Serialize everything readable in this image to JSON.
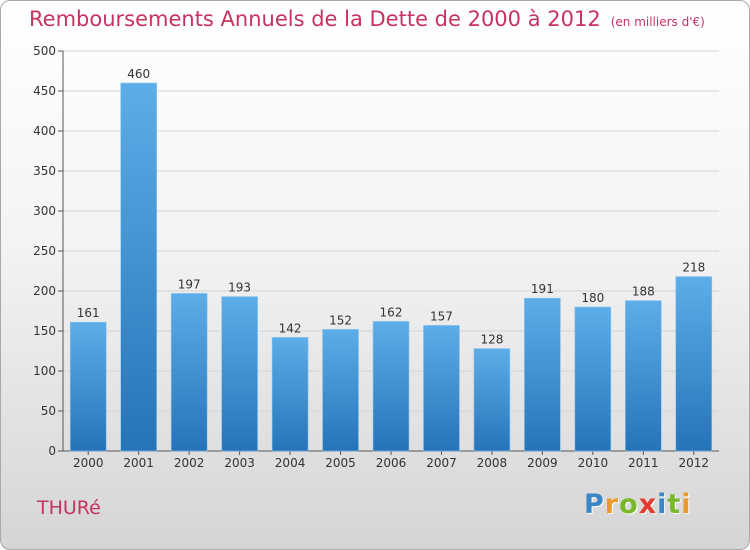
{
  "title": "Remboursements Annuels de la Dette de 2000 à 2012",
  "subtitle": "(en milliers d'€)",
  "commune": "THURé",
  "logo": {
    "letters": [
      "P",
      "r",
      "o",
      "x",
      "i",
      "t",
      "i"
    ],
    "colors": [
      "#3a86c8",
      "#e89b2b",
      "#79b82b",
      "#e23a2e",
      "#3a86c8",
      "#79b82b",
      "#e89b2b"
    ]
  },
  "colors": {
    "bar_light": "#5dade8",
    "bar_dark": "#2674b8",
    "title": "#c8325f"
  },
  "chart_data": {
    "type": "bar",
    "title": "Remboursements Annuels de la Dette de 2000 à 2012",
    "subtitle": "(en milliers d'€)",
    "categories": [
      "2000",
      "2001",
      "2002",
      "2003",
      "2004",
      "2005",
      "2006",
      "2007",
      "2008",
      "2009",
      "2010",
      "2011",
      "2012"
    ],
    "values": [
      161,
      460,
      197,
      193,
      142,
      152,
      162,
      157,
      128,
      191,
      180,
      188,
      218
    ],
    "ylim": [
      0,
      500
    ],
    "yticks": [
      0,
      50,
      100,
      150,
      200,
      250,
      300,
      350,
      400,
      450,
      500
    ],
    "grid": true,
    "legend": "none"
  }
}
